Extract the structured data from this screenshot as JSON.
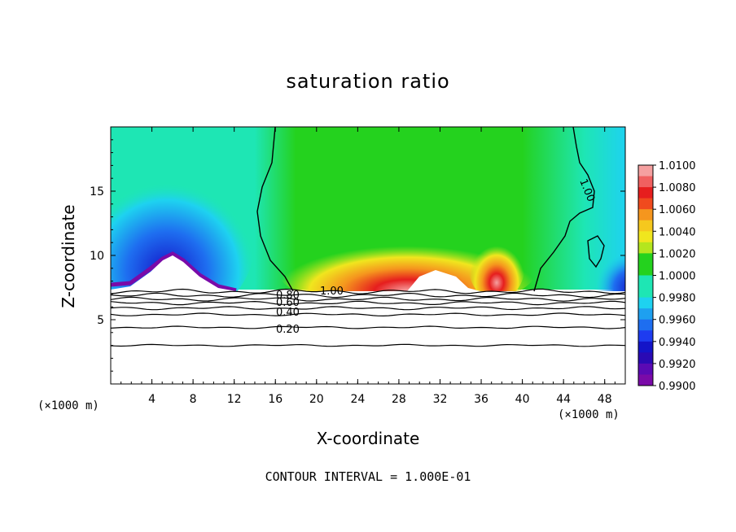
{
  "chart_data": {
    "type": "heatmap",
    "title": "saturation ratio",
    "xlabel": "X-coordinate",
    "ylabel": "Z-coordinate",
    "x_unit": "(×1000 m)",
    "xlim": [
      0,
      50
    ],
    "ylim": [
      0,
      20
    ],
    "x_ticks": [
      "4",
      "8",
      "12",
      "16",
      "20",
      "24",
      "28",
      "32",
      "36",
      "40",
      "44",
      "48"
    ],
    "y_ticks": [
      "5",
      "10",
      "15"
    ],
    "colorbar": {
      "labels": [
        "1.0100",
        "1.0080",
        "1.0060",
        "1.0040",
        "1.0020",
        "1.0000",
        "0.9980",
        "0.9960",
        "0.9940",
        "0.9920",
        "0.9900"
      ],
      "range": [
        0.99,
        1.01
      ]
    },
    "contour_labels": [
      "1.00",
      "0.80",
      "0.60",
      "0.40",
      "0.20",
      "1.00"
    ],
    "footer": "CONTOUR INTERVAL = 1.000E-01"
  },
  "colors": {
    "purple": "#7a0aa8",
    "navy": "#1414c8",
    "blue": "#1e6ef0",
    "cyan": "#1ed2f0",
    "teal": "#1ee6b4",
    "green": "#24d21e",
    "yellowgreen": "#b4e61e",
    "yellow": "#f0e61e",
    "orange": "#f5961e",
    "red": "#e61e1e",
    "pink": "#f5a0a0"
  }
}
